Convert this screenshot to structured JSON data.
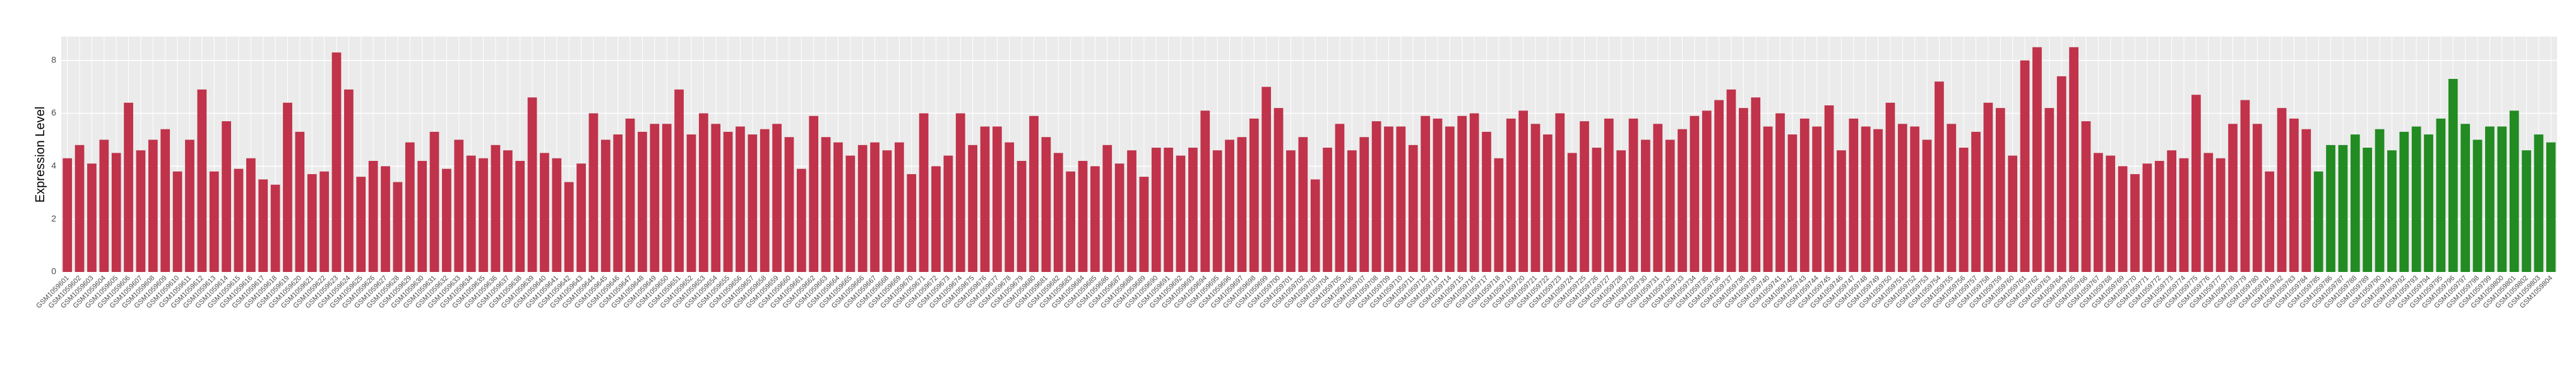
{
  "chart_data": {
    "type": "bar",
    "y_label": "Expression Level",
    "categories": [
      "GSM1059601",
      "GSM1059602",
      "GSM1059603",
      "GSM1059604",
      "GSM1059605",
      "GSM1059606",
      "GSM1059607",
      "GSM1059608",
      "GSM1059609",
      "GSM1059610",
      "GSM1059611",
      "GSM1059612",
      "GSM1059613",
      "GSM1059614",
      "GSM1059615",
      "GSM1059616",
      "GSM1059617",
      "GSM1059618",
      "GSM1059619",
      "GSM1059620",
      "GSM1059621",
      "GSM1059622",
      "GSM1059623",
      "GSM1059624",
      "GSM1059625",
      "GSM1059626",
      "GSM1059627",
      "GSM1059628",
      "GSM1059629",
      "GSM1059630",
      "GSM1059631",
      "GSM1059632",
      "GSM1059633",
      "GSM1059634",
      "GSM1059635",
      "GSM1059636",
      "GSM1059637",
      "GSM1059638",
      "GSM1059639",
      "GSM1059640",
      "GSM1059641",
      "GSM1059642",
      "GSM1059643",
      "GSM1059644",
      "GSM1059645",
      "GSM1059646",
      "GSM1059647",
      "GSM1059648",
      "GSM1059649",
      "GSM1059650",
      "GSM1059651",
      "GSM1059652",
      "GSM1059653",
      "GSM1059654",
      "GSM1059655",
      "GSM1059656",
      "GSM1059657",
      "GSM1059658",
      "GSM1059659",
      "GSM1059660",
      "GSM1059661",
      "GSM1059662",
      "GSM1059663",
      "GSM1059664",
      "GSM1059665",
      "GSM1059666",
      "GSM1059667",
      "GSM1059668",
      "GSM1059669",
      "GSM1059670",
      "GSM1059671",
      "GSM1059672",
      "GSM1059673",
      "GSM1059674",
      "GSM1059675",
      "GSM1059676",
      "GSM1059677",
      "GSM1059678",
      "GSM1059679",
      "GSM1059680",
      "GSM1059681",
      "GSM1059682",
      "GSM1059683",
      "GSM1059684",
      "GSM1059685",
      "GSM1059686",
      "GSM1059687",
      "GSM1059688",
      "GSM1059689",
      "GSM1059690",
      "GSM1059691",
      "GSM1059692",
      "GSM1059693",
      "GSM1059694",
      "GSM1059695",
      "GSM1059696",
      "GSM1059697",
      "GSM1059698",
      "GSM1059699",
      "GSM1059700",
      "GSM1059701",
      "GSM1059702",
      "GSM1059703",
      "GSM1059704",
      "GSM1059705",
      "GSM1059706",
      "GSM1059707",
      "GSM1059708",
      "GSM1059709",
      "GSM1059710",
      "GSM1059711",
      "GSM1059712",
      "GSM1059713",
      "GSM1059714",
      "GSM1059715",
      "GSM1059716",
      "GSM1059717",
      "GSM1059718",
      "GSM1059719",
      "GSM1059720",
      "GSM1059721",
      "GSM1059722",
      "GSM1059723",
      "GSM1059724",
      "GSM1059725",
      "GSM1059726",
      "GSM1059727",
      "GSM1059728",
      "GSM1059729",
      "GSM1059730",
      "GSM1059731",
      "GSM1059732",
      "GSM1059733",
      "GSM1059734",
      "GSM1059735",
      "GSM1059736",
      "GSM1059737",
      "GSM1059738",
      "GSM1059739",
      "GSM1059740",
      "GSM1059741",
      "GSM1059742",
      "GSM1059743",
      "GSM1059744",
      "GSM1059745",
      "GSM1059746",
      "GSM1059747",
      "GSM1059748",
      "GSM1059749",
      "GSM1059750",
      "GSM1059751",
      "GSM1059752",
      "GSM1059753",
      "GSM1059754",
      "GSM1059755",
      "GSM1059756",
      "GSM1059757",
      "GSM1059758",
      "GSM1059759",
      "GSM1059760",
      "GSM1059761",
      "GSM1059762",
      "GSM1059763",
      "GSM1059764",
      "GSM1059765",
      "GSM1059766",
      "GSM1059767",
      "GSM1059768",
      "GSM1059769",
      "GSM1059770",
      "GSM1059771",
      "GSM1059772",
      "GSM1059773",
      "GSM1059774",
      "GSM1059775",
      "GSM1059776",
      "GSM1059777",
      "GSM1059778",
      "GSM1059779",
      "GSM1059780",
      "GSM1059781",
      "GSM1059782",
      "GSM1059783",
      "GSM1059784",
      "GSM1059785",
      "GSM1059786",
      "GSM1059787",
      "GSM1059788",
      "GSM1059789",
      "GSM1059790",
      "GSM1059791",
      "GSM1059792",
      "GSM1059793",
      "GSM1059794",
      "GSM1059795",
      "GSM1059796",
      "GSM1059797",
      "GSM1059798",
      "GSM1059799",
      "GSM1059800",
      "GSM1059801",
      "GSM1059802",
      "GSM1059803",
      "GSM1059804"
    ],
    "values": [
      4.3,
      4.8,
      4.1,
      5.0,
      4.5,
      6.4,
      4.6,
      5.0,
      5.4,
      3.8,
      5.0,
      6.9,
      3.8,
      5.7,
      3.9,
      4.3,
      3.5,
      3.3,
      6.4,
      5.3,
      3.7,
      3.8,
      8.3,
      6.9,
      3.6,
      4.2,
      4.0,
      3.4,
      4.9,
      4.2,
      5.3,
      3.9,
      5.0,
      4.4,
      4.3,
      4.8,
      4.6,
      4.2,
      6.6,
      4.5,
      4.3,
      3.4,
      4.1,
      6.0,
      5.0,
      5.2,
      5.8,
      5.3,
      5.6,
      5.6,
      6.9,
      5.2,
      6.0,
      5.6,
      5.3,
      5.5,
      5.2,
      5.4,
      5.6,
      5.1,
      3.9,
      5.9,
      5.1,
      4.9,
      4.4,
      4.8,
      4.9,
      4.6,
      4.9,
      3.7,
      6.0,
      4.0,
      4.4,
      6.0,
      4.8,
      5.5,
      5.5,
      4.9,
      4.2,
      5.9,
      5.1,
      4.5,
      3.8,
      4.2,
      4.0,
      4.8,
      4.1,
      4.6,
      3.6,
      4.7,
      4.7,
      4.4,
      4.7,
      6.1,
      4.6,
      5.0,
      5.1,
      5.8,
      7.0,
      6.2,
      4.6,
      5.1,
      3.5,
      4.7,
      5.6,
      4.6,
      5.1,
      5.7,
      5.5,
      5.5,
      4.8,
      5.9,
      5.8,
      5.5,
      5.9,
      6.0,
      5.3,
      4.3,
      5.8,
      6.1,
      5.6,
      5.2,
      6.0,
      4.5,
      5.7,
      4.7,
      5.8,
      4.6,
      5.8,
      5.0,
      5.6,
      5.0,
      5.4,
      5.9,
      6.1,
      6.5,
      6.9,
      6.2,
      6.6,
      5.5,
      6.0,
      5.2,
      5.8,
      5.5,
      6.3,
      4.6,
      5.8,
      5.5,
      5.4,
      6.4,
      5.6,
      5.5,
      5.0,
      7.2,
      5.6,
      4.7,
      5.3,
      6.4,
      6.2,
      4.4,
      8.0,
      8.5,
      6.2,
      7.4,
      8.5,
      5.7,
      4.5,
      4.4,
      4.0,
      3.7,
      4.1,
      4.2,
      4.6,
      4.3,
      6.7,
      4.5,
      4.3,
      5.6,
      6.5,
      5.6,
      3.8,
      6.2,
      5.8,
      5.4,
      3.8,
      4.8,
      4.8,
      5.2,
      4.7,
      5.4,
      4.6,
      5.3,
      5.5,
      5.2,
      5.8,
      7.3,
      5.6,
      5.0,
      5.5,
      5.5,
      6.1,
      4.6,
      5.2,
      4.9
    ],
    "colors": [
      "#c0334a",
      "#c0334a",
      "#c0334a",
      "#c0334a",
      "#c0334a",
      "#c0334a",
      "#c0334a",
      "#c0334a",
      "#c0334a",
      "#c0334a",
      "#c0334a",
      "#c0334a",
      "#c0334a",
      "#c0334a",
      "#c0334a",
      "#c0334a",
      "#c0334a",
      "#c0334a",
      "#c0334a",
      "#c0334a",
      "#c0334a",
      "#c0334a",
      "#c0334a",
      "#c0334a",
      "#c0334a",
      "#c0334a",
      "#c0334a",
      "#c0334a",
      "#c0334a",
      "#c0334a",
      "#c0334a",
      "#c0334a",
      "#c0334a",
      "#c0334a",
      "#c0334a",
      "#c0334a",
      "#c0334a",
      "#c0334a",
      "#c0334a",
      "#c0334a",
      "#c0334a",
      "#c0334a",
      "#c0334a",
      "#c0334a",
      "#c0334a",
      "#c0334a",
      "#c0334a",
      "#c0334a",
      "#c0334a",
      "#c0334a",
      "#c0334a",
      "#c0334a",
      "#c0334a",
      "#c0334a",
      "#c0334a",
      "#c0334a",
      "#c0334a",
      "#c0334a",
      "#c0334a",
      "#c0334a",
      "#c0334a",
      "#c0334a",
      "#c0334a",
      "#c0334a",
      "#c0334a",
      "#c0334a",
      "#c0334a",
      "#c0334a",
      "#c0334a",
      "#c0334a",
      "#c0334a",
      "#c0334a",
      "#c0334a",
      "#c0334a",
      "#c0334a",
      "#c0334a",
      "#c0334a",
      "#c0334a",
      "#c0334a",
      "#c0334a",
      "#c0334a",
      "#c0334a",
      "#c0334a",
      "#c0334a",
      "#c0334a",
      "#c0334a",
      "#c0334a",
      "#c0334a",
      "#c0334a",
      "#c0334a",
      "#c0334a",
      "#c0334a",
      "#c0334a",
      "#c0334a",
      "#c0334a",
      "#c0334a",
      "#c0334a",
      "#c0334a",
      "#c0334a",
      "#c0334a",
      "#c0334a",
      "#c0334a",
      "#c0334a",
      "#c0334a",
      "#c0334a",
      "#c0334a",
      "#c0334a",
      "#c0334a",
      "#c0334a",
      "#c0334a",
      "#c0334a",
      "#c0334a",
      "#c0334a",
      "#c0334a",
      "#c0334a",
      "#c0334a",
      "#c0334a",
      "#c0334a",
      "#c0334a",
      "#c0334a",
      "#c0334a",
      "#c0334a",
      "#c0334a",
      "#c0334a",
      "#c0334a",
      "#c0334a",
      "#c0334a",
      "#c0334a",
      "#c0334a",
      "#c0334a",
      "#c0334a",
      "#c0334a",
      "#c0334a",
      "#c0334a",
      "#c0334a",
      "#c0334a",
      "#c0334a",
      "#c0334a",
      "#c0334a",
      "#c0334a",
      "#c0334a",
      "#c0334a",
      "#c0334a",
      "#c0334a",
      "#c0334a",
      "#c0334a",
      "#c0334a",
      "#c0334a",
      "#c0334a",
      "#c0334a",
      "#c0334a",
      "#c0334a",
      "#c0334a",
      "#c0334a",
      "#c0334a",
      "#c0334a",
      "#c0334a",
      "#c0334a",
      "#c0334a",
      "#c0334a",
      "#c0334a",
      "#c0334a",
      "#c0334a",
      "#c0334a",
      "#c0334a",
      "#c0334a",
      "#c0334a",
      "#c0334a",
      "#c0334a",
      "#c0334a",
      "#c0334a",
      "#c0334a",
      "#c0334a",
      "#c0334a",
      "#c0334a",
      "#c0334a",
      "#c0334a",
      "#c0334a",
      "#c0334a",
      "#c0334a",
      "#c0334a",
      "#c0334a",
      "#c0334a",
      "#c0334a",
      "#228b22",
      "#228b22",
      "#228b22",
      "#228b22",
      "#228b22",
      "#228b22",
      "#228b22",
      "#228b22",
      "#228b22",
      "#228b22",
      "#228b22",
      "#228b22",
      "#228b22",
      "#228b22",
      "#228b22",
      "#228b22",
      "#228b22",
      "#228b22",
      "#228b22",
      "#228b22",
      "#228b22"
    ],
    "ylim": [
      0,
      8.9
    ],
    "yticks": [
      0,
      2,
      4,
      6,
      8
    ],
    "grid": true
  }
}
